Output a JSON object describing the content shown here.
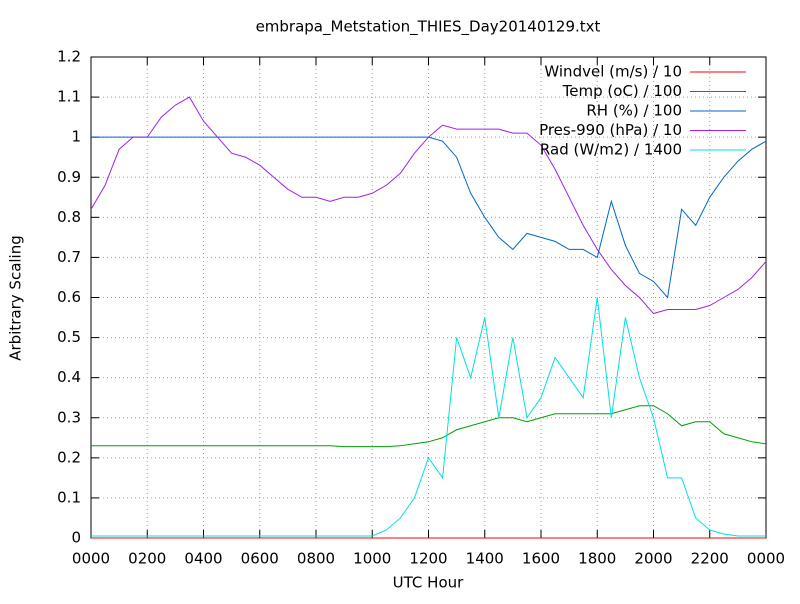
{
  "chart_data": {
    "type": "line",
    "title": "embrapa_Metstation_THIES_Day20140129.txt",
    "xlabel": "UTC Hour",
    "ylabel": "Arbitrary Scaling",
    "x": [
      0,
      0.5,
      1,
      1.5,
      2,
      2.5,
      3,
      3.5,
      4,
      4.5,
      5,
      5.5,
      6,
      6.5,
      7,
      7.5,
      8,
      8.5,
      9,
      9.5,
      10,
      10.5,
      11,
      11.5,
      12,
      12.5,
      13,
      13.5,
      14,
      14.5,
      15,
      15.5,
      16,
      16.5,
      17,
      17.5,
      18,
      18.5,
      19,
      19.5,
      20,
      20.5,
      21,
      21.5,
      22,
      22.5,
      23,
      23.5,
      24
    ],
    "series": [
      {
        "name": "Windvel (m/s) / 10",
        "color": "#ff0000",
        "values": [
          0,
          0,
          0,
          0,
          0,
          0,
          0,
          0,
          0,
          0,
          0,
          0,
          0,
          0,
          0,
          0,
          0,
          0,
          0,
          0,
          0,
          0,
          0,
          0,
          0,
          0,
          0,
          0,
          0,
          0,
          0,
          0,
          0,
          0,
          0,
          0,
          0,
          0,
          0,
          0,
          0,
          0,
          0,
          0,
          0,
          0,
          0,
          0,
          0
        ]
      },
      {
        "name": "Temp (oC) / 100",
        "color": "#00a000",
        "values": [
          0.23,
          0.23,
          0.23,
          0.23,
          0.23,
          0.23,
          0.23,
          0.23,
          0.23,
          0.23,
          0.23,
          0.23,
          0.23,
          0.23,
          0.23,
          0.23,
          0.23,
          0.23,
          0.228,
          0.228,
          0.228,
          0.228,
          0.23,
          0.235,
          0.24,
          0.25,
          0.27,
          0.28,
          0.29,
          0.3,
          0.3,
          0.29,
          0.3,
          0.31,
          0.31,
          0.31,
          0.31,
          0.31,
          0.32,
          0.33,
          0.33,
          0.31,
          0.28,
          0.29,
          0.29,
          0.26,
          0.25,
          0.24,
          0.235
        ]
      },
      {
        "name": "RH (%) / 100",
        "color": "#0066cc",
        "values": [
          1,
          1,
          1,
          1,
          1,
          1,
          1,
          1,
          1,
          1,
          1,
          1,
          1,
          1,
          1,
          1,
          1,
          1,
          1,
          1,
          1,
          1,
          1,
          1,
          1,
          0.99,
          0.95,
          0.86,
          0.8,
          0.75,
          0.72,
          0.76,
          0.75,
          0.74,
          0.72,
          0.72,
          0.7,
          0.84,
          0.73,
          0.66,
          0.64,
          0.6,
          0.82,
          0.78,
          0.85,
          0.9,
          0.94,
          0.97,
          0.99
        ]
      },
      {
        "name": "Pres-990 (hPa) / 10",
        "color": "#a020f0",
        "values": [
          0.82,
          0.88,
          0.97,
          1,
          1,
          1.05,
          1.08,
          1.1,
          1.04,
          1,
          0.96,
          0.95,
          0.93,
          0.9,
          0.87,
          0.85,
          0.85,
          0.84,
          0.85,
          0.85,
          0.86,
          0.88,
          0.91,
          0.96,
          1,
          1.03,
          1.02,
          1.02,
          1.02,
          1.02,
          1.01,
          1.01,
          0.98,
          0.92,
          0.85,
          0.78,
          0.72,
          0.67,
          0.63,
          0.6,
          0.56,
          0.57,
          0.57,
          0.57,
          0.58,
          0.6,
          0.62,
          0.65,
          0.69
        ]
      },
      {
        "name": "Rad (W/m2) / 1400",
        "color": "#00e0e0",
        "values": [
          0.005,
          0.005,
          0.005,
          0.005,
          0.005,
          0.005,
          0.005,
          0.005,
          0.005,
          0.005,
          0.005,
          0.005,
          0.005,
          0.005,
          0.005,
          0.005,
          0.005,
          0.005,
          0.005,
          0.005,
          0.005,
          0.02,
          0.05,
          0.1,
          0.2,
          0.15,
          0.5,
          0.4,
          0.55,
          0.3,
          0.5,
          0.3,
          0.35,
          0.45,
          0.4,
          0.35,
          0.6,
          0.3,
          0.55,
          0.4,
          0.3,
          0.15,
          0.15,
          0.05,
          0.02,
          0.01,
          0.005,
          0.005,
          0.005
        ]
      }
    ],
    "xlim": [
      0,
      24
    ],
    "xticks": [
      {
        "value": 0,
        "label": "0000"
      },
      {
        "value": 2,
        "label": "0200"
      },
      {
        "value": 4,
        "label": "0400"
      },
      {
        "value": 6,
        "label": "0600"
      },
      {
        "value": 8,
        "label": "0800"
      },
      {
        "value": 10,
        "label": "1000"
      },
      {
        "value": 12,
        "label": "1200"
      },
      {
        "value": 14,
        "label": "1400"
      },
      {
        "value": 16,
        "label": "1600"
      },
      {
        "value": 18,
        "label": "1800"
      },
      {
        "value": 20,
        "label": "2000"
      },
      {
        "value": 22,
        "label": "2200"
      },
      {
        "value": 24,
        "label": "0000"
      }
    ],
    "ylim": [
      0,
      1.2
    ],
    "yticks": [
      0,
      0.1,
      0.2,
      0.3,
      0.4,
      0.5,
      0.6,
      0.7,
      0.8,
      0.9,
      1,
      1.1,
      1.2
    ],
    "grid": true,
    "legend": "top-right"
  }
}
